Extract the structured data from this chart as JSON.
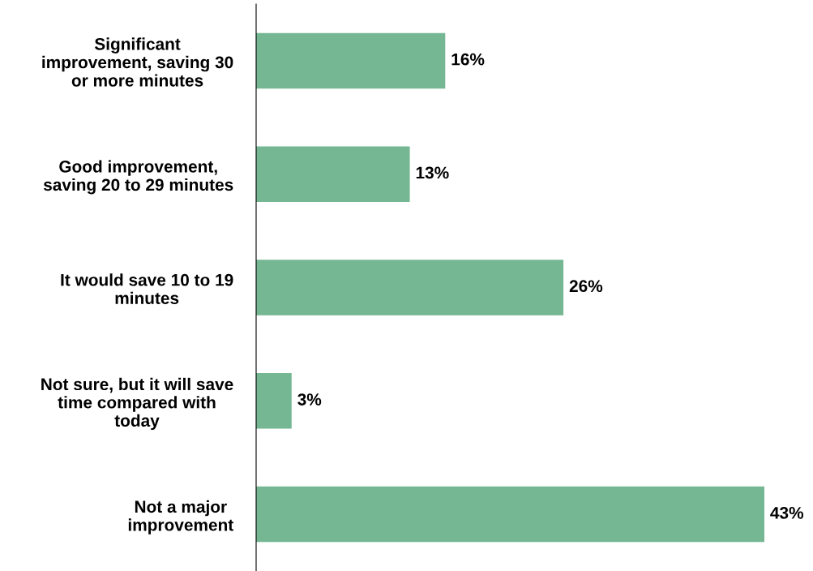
{
  "chart_data": {
    "type": "bar",
    "orientation": "horizontal",
    "categories": [
      "Significant\nimprovement, saving 30\nor more minutes",
      "Good improvement,\nsaving 20 to 29 minutes",
      "It would save 10 to 19\nminutes",
      "Not sure, but it will save\ntime compared with\ntoday",
      "Not a major\nimprovement"
    ],
    "values": [
      16,
      13,
      26,
      3,
      43
    ],
    "value_labels": [
      "16%",
      "13%",
      "26%",
      "3%",
      "43%"
    ],
    "color": "#74b792",
    "grid": false,
    "legend": false
  }
}
